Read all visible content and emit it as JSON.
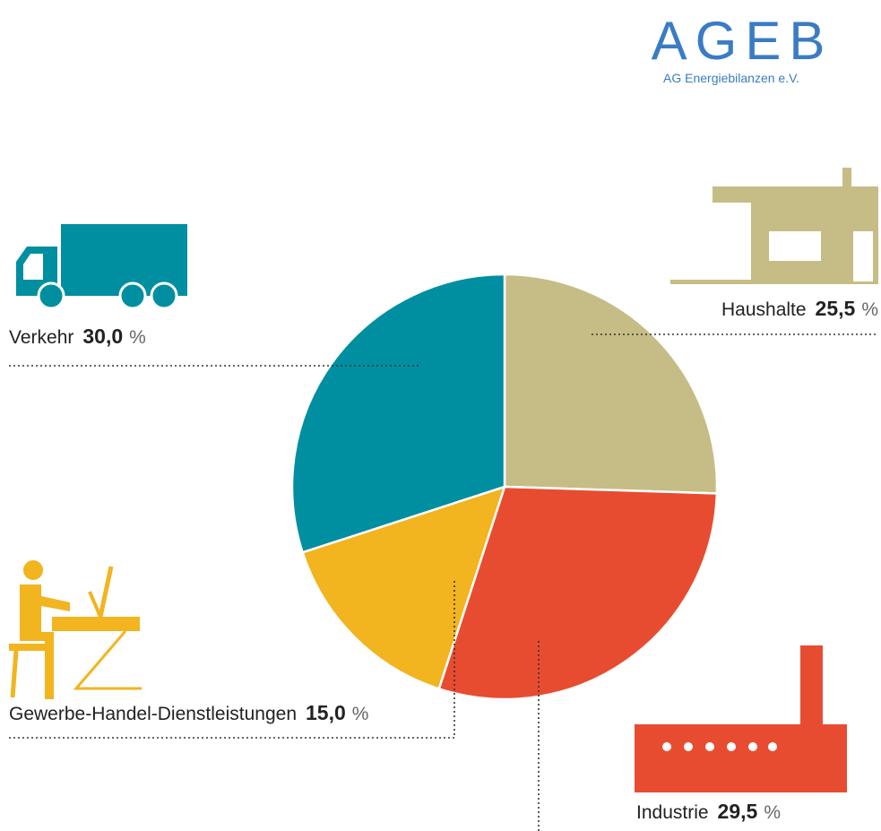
{
  "chart_data": {
    "type": "pie",
    "logo": "AGEB",
    "logo_subtitle": "AG Energiebilanzen e.V.",
    "categories": [
      "Haushalte",
      "Industrie",
      "Gewerbe-Handel-Dienstleistungen",
      "Verkehr"
    ],
    "values": [
      25.5,
      29.5,
      15.0,
      30.0
    ],
    "value_labels": [
      "25,5",
      "29,5",
      "15,0",
      "30,0"
    ],
    "unit": "%",
    "colors": [
      "#c5bd85",
      "#e84c30",
      "#f2b41f",
      "#008fa0"
    ]
  }
}
